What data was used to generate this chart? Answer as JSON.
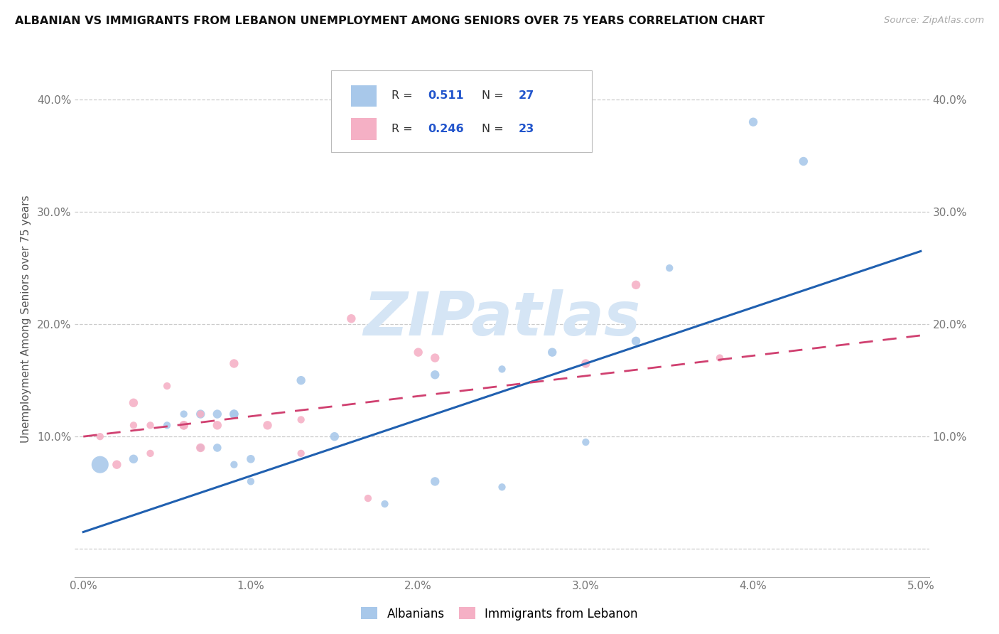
{
  "title": "ALBANIAN VS IMMIGRANTS FROM LEBANON UNEMPLOYMENT AMONG SENIORS OVER 75 YEARS CORRELATION CHART",
  "source": "Source: ZipAtlas.com",
  "ylabel": "Unemployment Among Seniors over 75 years",
  "xlim": [
    -0.0005,
    0.0505
  ],
  "ylim": [
    -0.025,
    0.435
  ],
  "xticks": [
    0.0,
    0.01,
    0.02,
    0.03,
    0.04,
    0.05
  ],
  "yticks": [
    0.0,
    0.1,
    0.2,
    0.3,
    0.4
  ],
  "xtick_labels": [
    "0.0%",
    "1.0%",
    "2.0%",
    "3.0%",
    "4.0%",
    "5.0%"
  ],
  "ytick_labels": [
    "",
    "10.0%",
    "20.0%",
    "30.0%",
    "40.0%"
  ],
  "R_albanian": "0.511",
  "N_albanian": "27",
  "R_lebanon": "0.246",
  "N_lebanon": "23",
  "color_albanian": "#a8c8ea",
  "color_lebanon": "#f5b0c5",
  "line_color_albanian": "#2060b0",
  "line_color_lebanon": "#d04070",
  "watermark_color": "#d5e5f5",
  "albanian_x": [
    0.001,
    0.003,
    0.005,
    0.006,
    0.006,
    0.007,
    0.007,
    0.008,
    0.008,
    0.009,
    0.009,
    0.009,
    0.01,
    0.01,
    0.013,
    0.015,
    0.018,
    0.021,
    0.021,
    0.025,
    0.025,
    0.028,
    0.03,
    0.033,
    0.035,
    0.04,
    0.043
  ],
  "albanian_y": [
    0.075,
    0.08,
    0.11,
    0.11,
    0.12,
    0.09,
    0.12,
    0.12,
    0.09,
    0.075,
    0.12,
    0.12,
    0.06,
    0.08,
    0.15,
    0.1,
    0.04,
    0.06,
    0.155,
    0.16,
    0.055,
    0.175,
    0.095,
    0.185,
    0.25,
    0.38,
    0.345
  ],
  "albanian_size": [
    300,
    80,
    55,
    55,
    55,
    55,
    80,
    80,
    70,
    55,
    80,
    80,
    55,
    70,
    80,
    80,
    55,
    80,
    80,
    55,
    55,
    80,
    55,
    80,
    55,
    80,
    80
  ],
  "lebanon_x": [
    0.001,
    0.002,
    0.003,
    0.003,
    0.004,
    0.004,
    0.005,
    0.006,
    0.006,
    0.007,
    0.007,
    0.008,
    0.009,
    0.011,
    0.013,
    0.013,
    0.016,
    0.017,
    0.02,
    0.021,
    0.03,
    0.033,
    0.038
  ],
  "lebanon_y": [
    0.1,
    0.075,
    0.13,
    0.11,
    0.085,
    0.11,
    0.145,
    0.11,
    0.11,
    0.12,
    0.09,
    0.11,
    0.165,
    0.11,
    0.115,
    0.085,
    0.205,
    0.045,
    0.175,
    0.17,
    0.165,
    0.235,
    0.17
  ],
  "lebanon_size": [
    55,
    80,
    80,
    55,
    55,
    55,
    55,
    80,
    80,
    55,
    80,
    80,
    80,
    80,
    55,
    55,
    80,
    55,
    80,
    80,
    80,
    80,
    55
  ],
  "line_albanian_x0": 0.0,
  "line_albanian_y0": 0.015,
  "line_albanian_x1": 0.05,
  "line_albanian_y1": 0.265,
  "line_lebanon_x0": 0.0,
  "line_lebanon_y0": 0.1,
  "line_lebanon_x1": 0.05,
  "line_lebanon_y1": 0.19
}
